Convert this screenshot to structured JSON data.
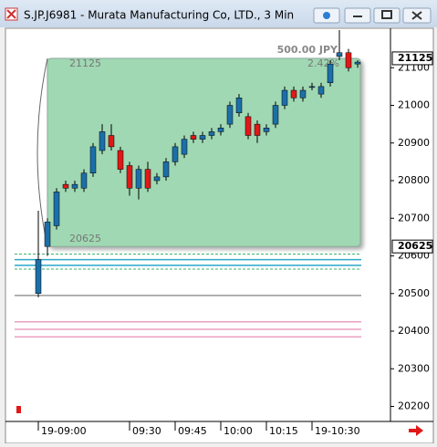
{
  "chart_data": {
    "type": "candlestick",
    "title": "S.JP.J6981 - Murata Manufacturing Co, LTD., 3 Min",
    "categories": [
      "19-09:00",
      null,
      null,
      null,
      null,
      null,
      null,
      null,
      null,
      null,
      "09:30",
      null,
      null,
      null,
      null,
      "09:45",
      null,
      null,
      null,
      null,
      "10:00",
      null,
      null,
      null,
      null,
      "10:15",
      null,
      null,
      null,
      null,
      "19-10:30",
      null,
      null,
      null,
      null,
      null
    ],
    "open": [
      20500,
      20625,
      20680,
      20790,
      20780,
      20780,
      20820,
      20880,
      20920,
      20880,
      20840,
      20780,
      20830,
      20800,
      20810,
      20850,
      20870,
      20920,
      20910,
      20920,
      20930,
      20950,
      20980,
      20970,
      20950,
      20930,
      20950,
      21000,
      21040,
      21020,
      21050,
      21030,
      21060,
      21130,
      21140,
      21110
    ],
    "high": [
      20720,
      20700,
      20780,
      20800,
      20800,
      20830,
      20900,
      20950,
      20950,
      20890,
      20850,
      20840,
      20850,
      20820,
      20860,
      20900,
      20920,
      20930,
      20930,
      20940,
      20950,
      21010,
      21030,
      20980,
      20960,
      20950,
      21010,
      21050,
      21050,
      21050,
      21060,
      21060,
      21120,
      21200,
      21150,
      21120
    ],
    "low": [
      20490,
      20600,
      20670,
      20770,
      20770,
      20770,
      20810,
      20870,
      20880,
      20820,
      20760,
      20750,
      20770,
      20790,
      20800,
      20840,
      20860,
      20900,
      20900,
      20910,
      20920,
      20940,
      20970,
      20910,
      20900,
      20920,
      20940,
      20990,
      21010,
      21010,
      21040,
      21020,
      21050,
      21120,
      21090,
      21100
    ],
    "close": [
      20590,
      20690,
      20770,
      20780,
      20790,
      20820,
      20890,
      20930,
      20890,
      20830,
      20780,
      20830,
      20780,
      20810,
      20850,
      20890,
      20910,
      20910,
      20920,
      20930,
      20940,
      21000,
      21020,
      20920,
      20920,
      20940,
      21000,
      21040,
      21020,
      21040,
      21050,
      21050,
      21110,
      21140,
      21100,
      21115
    ],
    "up_color": "#1c6fa8",
    "down_color": "#e01818",
    "ylim": [
      20160,
      21200
    ],
    "yticks": [
      20200,
      20300,
      20400,
      20500,
      20600,
      20700,
      20800,
      20900,
      21000,
      21100
    ],
    "price_markers": [
      21125,
      20625
    ],
    "range_box": {
      "high": 21125,
      "low": 20625,
      "range_text": "500.00  JPY",
      "percent_text": "2.42%",
      "color": "#a0d8b3"
    },
    "levels": [
      {
        "value": 20605,
        "color": "#3bb36b",
        "dash": true
      },
      {
        "value": 20590,
        "color": "#2aa7c9",
        "dash": false
      },
      {
        "value": 20575,
        "color": "#2aa7c9",
        "dash": false
      },
      {
        "value": 20565,
        "color": "#3bb36b",
        "dash": true
      },
      {
        "value": 20495,
        "color": "#999999",
        "dash": false
      },
      {
        "value": 20425,
        "color": "#e8a0c0",
        "dash": false
      },
      {
        "value": 20405,
        "color": "#e8a0c0",
        "dash": false
      },
      {
        "value": 20385,
        "color": "#e8a0c0",
        "dash": false
      }
    ]
  }
}
